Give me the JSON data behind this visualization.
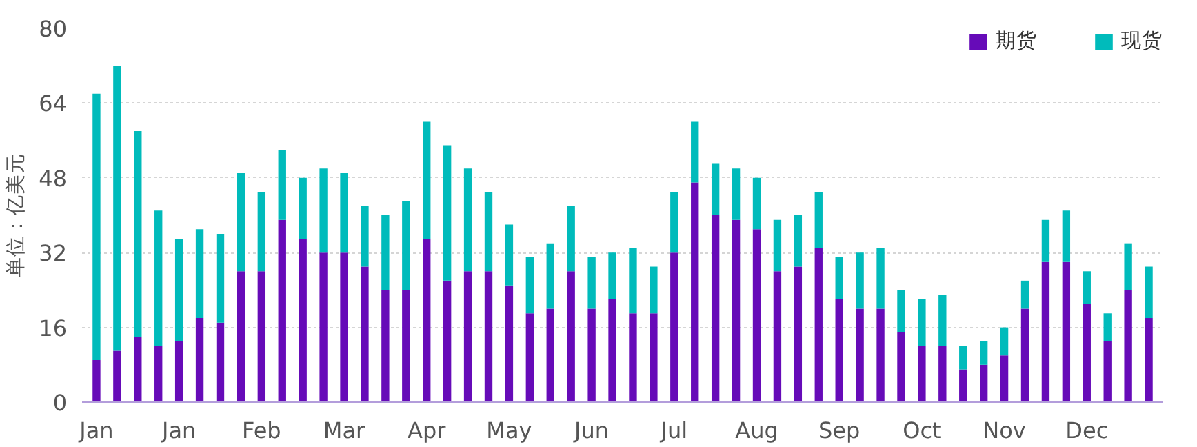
{
  "chart_data": {
    "type": "bar",
    "stacked": true,
    "ylabel": "单位：亿美元",
    "categories": [
      "Jan",
      null,
      null,
      null,
      "Jan",
      null,
      null,
      null,
      "Feb",
      null,
      null,
      null,
      "Mar",
      null,
      null,
      null,
      "Apr",
      null,
      null,
      null,
      "May",
      null,
      null,
      null,
      "Jun",
      null,
      null,
      null,
      "Jul",
      null,
      null,
      null,
      "Aug",
      null,
      null,
      null,
      "Sep",
      null,
      null,
      null,
      "Oct",
      null,
      null,
      null,
      "Nov",
      null,
      null,
      null,
      "Dec",
      null,
      null,
      null
    ],
    "series": [
      {
        "name": "期货",
        "color": "#660bb8",
        "values": [
          9,
          11,
          14,
          12,
          13,
          18,
          17,
          28,
          28,
          39,
          35,
          32,
          32,
          29,
          24,
          24,
          35,
          26,
          28,
          28,
          25,
          19,
          20,
          28,
          20,
          22,
          19,
          19,
          32,
          47,
          40,
          39,
          37,
          28,
          29,
          33,
          22,
          20,
          20,
          15,
          12,
          12,
          7,
          8,
          10,
          20,
          30,
          30,
          21,
          13,
          24,
          18
        ]
      },
      {
        "name": "现货",
        "color": "#00bbbb",
        "values": [
          57,
          61,
          44,
          29,
          22,
          19,
          19,
          21,
          17,
          15,
          13,
          18,
          17,
          13,
          16,
          19,
          25,
          29,
          22,
          17,
          13,
          12,
          14,
          14,
          11,
          10,
          14,
          10,
          13,
          13,
          11,
          11,
          11,
          11,
          11,
          12,
          9,
          12,
          13,
          9,
          10,
          11,
          5,
          5,
          6,
          6,
          9,
          11,
          7,
          6,
          10,
          11
        ]
      }
    ],
    "ylim": [
      0,
      80
    ],
    "yticks": [
      0,
      16,
      32,
      48,
      64,
      80
    ],
    "grid": "y",
    "legend": "top right"
  }
}
